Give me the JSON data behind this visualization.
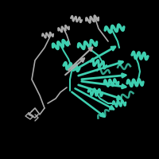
{
  "background_color": "#000000",
  "teal_color": "#3ecfb0",
  "gray_color": "#808080",
  "dark_gray": "#555555",
  "light_gray": "#aaaaaa",
  "figsize": [
    2.0,
    2.0
  ],
  "dpi": 100
}
